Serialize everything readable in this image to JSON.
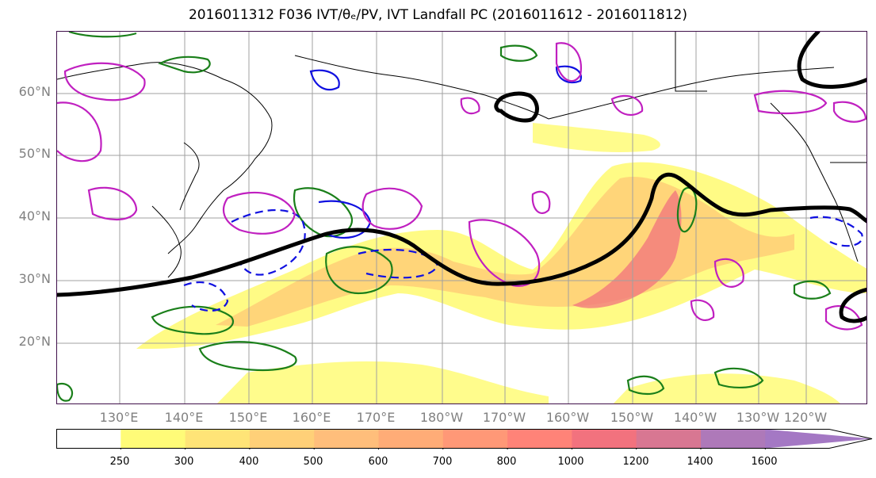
{
  "title": "2016011312 F036 IVT/θₑ/PV, IVT Landfall PC (2016011612 - 2016011812)",
  "map": {
    "lat_labels": [
      "60°N",
      "50°N",
      "40°N",
      "30°N",
      "20°N"
    ],
    "lon_labels": [
      "130°E",
      "140°E",
      "150°E",
      "160°E",
      "170°E",
      "180°W",
      "170°W",
      "160°W",
      "150°W",
      "140°W",
      "130°W",
      "120°W"
    ]
  },
  "colorbar": {
    "levels": [
      "250",
      "300",
      "400",
      "500",
      "600",
      "700",
      "800",
      "1000",
      "1200",
      "1400",
      "1600"
    ],
    "colors": [
      "#ffffff",
      "#fffb78",
      "#ffe477",
      "#ffd078",
      "#ffbe7b",
      "#ffac77",
      "#ff9877",
      "#ff8378",
      "#f2727e",
      "#d87792",
      "#ae79b9",
      "#a478c4"
    ]
  },
  "colors": {
    "ivt_low": "#fffb78",
    "ivt_high": "#f2727e",
    "contour_black": "#000000",
    "contour_green": "#1a7f1a",
    "contour_blue": "#1010e0",
    "contour_magenta": "#c020c0"
  }
}
